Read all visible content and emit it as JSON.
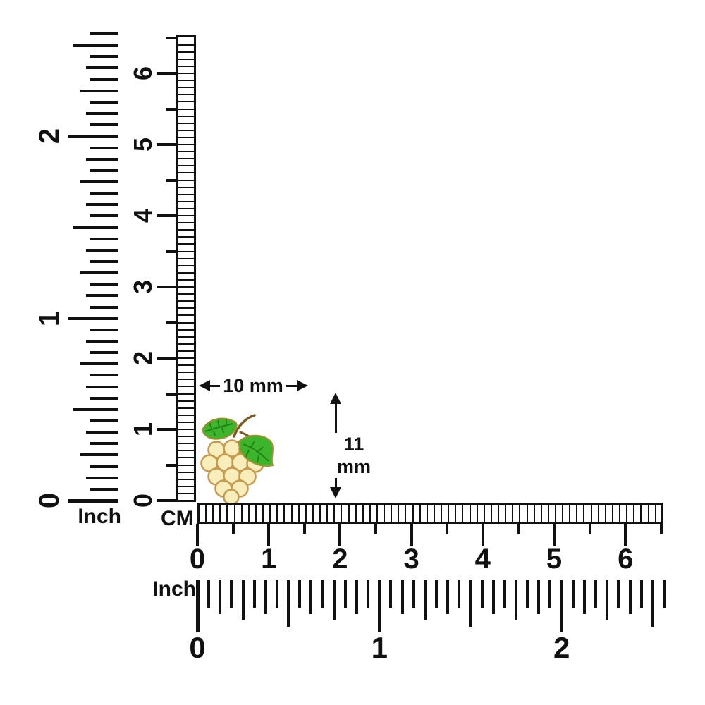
{
  "page": {
    "background": "#ffffff"
  },
  "product": {
    "image": "grape-charm"
  },
  "annotations": {
    "width_label": "10 mm",
    "height_label": "11 mm"
  },
  "rulers": {
    "vertical_inch": {
      "unit_label": "Inch",
      "numbers": [
        "0",
        "1",
        "2"
      ],
      "ticks_per_inch": 16,
      "total_sixteenths": 41
    },
    "vertical_cm": {
      "numbers": [
        "0",
        "1",
        "2",
        "3",
        "4",
        "5",
        "6"
      ],
      "total_mm": 65
    },
    "horizontal_cm": {
      "unit_label": "CM",
      "numbers": [
        "0",
        "1",
        "2",
        "3",
        "4",
        "5",
        "6"
      ],
      "total_mm": 65
    },
    "horizontal_inch": {
      "unit_label": "Inch",
      "numbers": [
        "0",
        "1",
        "2"
      ],
      "ticks_per_inch": 16,
      "total_sixteenths": 41
    }
  },
  "colors": {
    "ink": "#111111",
    "berry_fill": "#f7eebb",
    "berry_outline": "#c69a4d",
    "leaf_fill": "#3cb42c",
    "leaf_vein": "#1f7f15",
    "leaf_outline": "#a98f2f",
    "stem": "#7a5c22"
  }
}
